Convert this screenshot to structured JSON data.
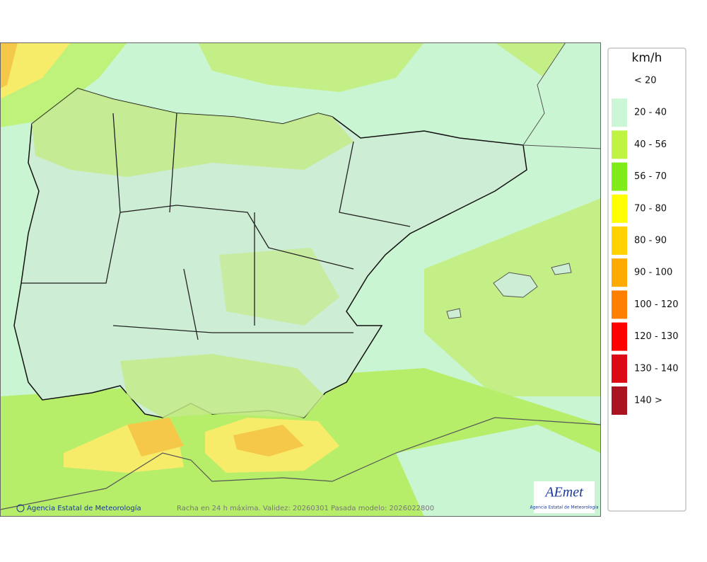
{
  "map": {
    "legend": {
      "unit": "km/h",
      "items": [
        {
          "label": "< 20",
          "color": "#ffffff"
        },
        {
          "label": "20 - 40",
          "color": "#ccf7d6"
        },
        {
          "label": "40 - 56",
          "color": "#bff542"
        },
        {
          "label": "56 - 70",
          "color": "#7fec1a"
        },
        {
          "label": "70 - 80",
          "color": "#ffff00"
        },
        {
          "label": "80 - 90",
          "color": "#ffd200"
        },
        {
          "label": "90 - 100",
          "color": "#ffaa00"
        },
        {
          "label": "100 - 120",
          "color": "#ff8000"
        },
        {
          "label": "120 - 130",
          "color": "#ff0000"
        },
        {
          "label": "130 - 140",
          "color": "#dc0a14"
        },
        {
          "label": "140 >",
          "color": "#aa1420"
        }
      ]
    },
    "credit": "Agencia Estatal de Meteorología",
    "caption": "Racha en 24 h máxima. Validez: 20260301 Pasada modelo: 2026022800",
    "logo": {
      "name": "AEmet",
      "subtitle": "Agencia Estatal de Meteorología"
    }
  }
}
